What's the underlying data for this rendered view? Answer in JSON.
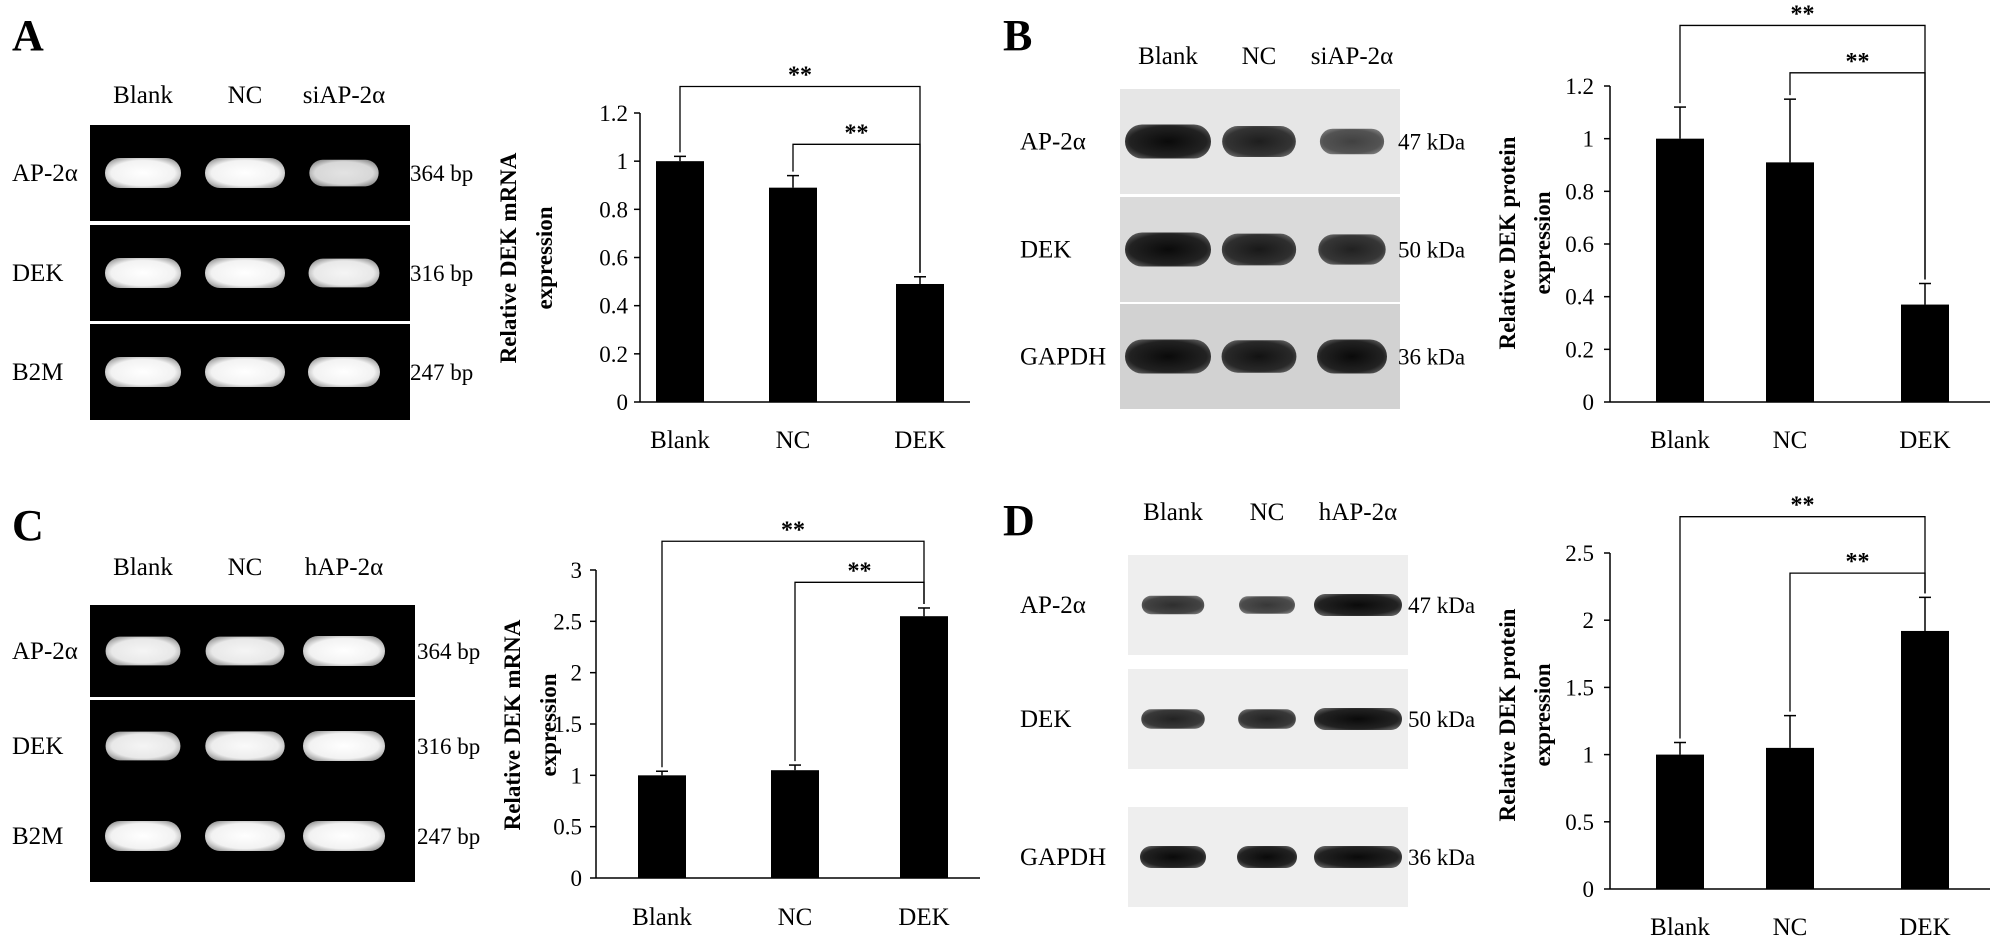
{
  "panels": [
    {
      "letter": "A",
      "gel": {
        "style": "dark",
        "lanes": [
          "Blank",
          "NC",
          "siAP-2α"
        ],
        "rows": [
          {
            "label": "AP-2α",
            "size": "364 bp",
            "intensity": [
              1.0,
              1.0,
              0.75
            ]
          },
          {
            "label": "DEK",
            "size": "316 bp",
            "intensity": [
              1.0,
              1.0,
              0.9
            ]
          },
          {
            "label": "B2M",
            "size": "247 bp",
            "intensity": [
              1.0,
              1.0,
              1.0
            ]
          }
        ]
      },
      "chart_data": {
        "type": "bar",
        "categories": [
          "Blank",
          "NC",
          "DEK"
        ],
        "values": [
          1.0,
          0.89,
          0.49
        ],
        "errors": [
          0.02,
          0.05,
          0.03
        ],
        "ylabel_line1": "Relative DEK mRNA",
        "ylabel_line2": "expression",
        "ylim": [
          0,
          1.2
        ],
        "yticks": [
          0,
          0.2,
          0.4,
          0.6,
          0.8,
          1,
          1.2
        ],
        "significance": [
          {
            "from": 0,
            "to": 2,
            "label": "**",
            "level": 1.31
          },
          {
            "from": 1,
            "to": 2,
            "label": "**",
            "level": 1.07
          }
        ]
      }
    },
    {
      "letter": "B",
      "gel": {
        "style": "light",
        "lanes": [
          "Blank",
          "NC",
          "siAP-2α"
        ],
        "rows": [
          {
            "label": "AP-2α",
            "size": "47 kDa",
            "intensity": [
              1.0,
              0.8,
              0.45
            ]
          },
          {
            "label": "DEK",
            "size": "50 kDa",
            "intensity": [
              1.0,
              0.85,
              0.75
            ]
          },
          {
            "label": "GAPDH",
            "size": "36 kDa",
            "intensity": [
              1.0,
              0.9,
              1.0
            ]
          }
        ]
      },
      "chart_data": {
        "type": "bar",
        "categories": [
          "Blank",
          "NC",
          "DEK"
        ],
        "values": [
          1.0,
          0.91,
          0.37
        ],
        "errors": [
          0.12,
          0.24,
          0.08
        ],
        "ylabel_line1": "Relative DEK protein",
        "ylabel_line2": "expression",
        "ylim": [
          0,
          1.2
        ],
        "yticks": [
          0,
          0.2,
          0.4,
          0.6,
          0.8,
          1,
          1.2
        ],
        "significance": [
          {
            "from": 0,
            "to": 2,
            "label": "**",
            "level": 1.43
          },
          {
            "from": 1,
            "to": 2,
            "label": "**",
            "level": 1.25
          }
        ]
      }
    },
    {
      "letter": "C",
      "gel": {
        "style": "dark",
        "lanes": [
          "Blank",
          "NC",
          "hAP-2α"
        ],
        "rows": [
          {
            "label": "AP-2α",
            "size": "364 bp",
            "intensity": [
              0.9,
              0.9,
              1.0
            ]
          },
          {
            "label": "DEK",
            "size": "316 bp",
            "intensity": [
              0.9,
              0.95,
              1.0
            ]
          },
          {
            "label": "B2M",
            "size": "247 bp",
            "intensity": [
              1.0,
              1.0,
              1.0
            ]
          }
        ]
      },
      "chart_data": {
        "type": "bar",
        "categories": [
          "Blank",
          "NC",
          "DEK"
        ],
        "values": [
          1.0,
          1.05,
          2.55
        ],
        "errors": [
          0.04,
          0.05,
          0.08
        ],
        "ylabel_line1": "Relative DEK mRNA",
        "ylabel_line2": "expression",
        "ylim": [
          0,
          3
        ],
        "yticks": [
          0,
          0.5,
          1,
          1.5,
          2,
          2.5,
          3
        ],
        "significance": [
          {
            "from": 0,
            "to": 2,
            "label": "**",
            "level": 3.28
          },
          {
            "from": 1,
            "to": 2,
            "label": "**",
            "level": 2.88
          }
        ]
      }
    },
    {
      "letter": "D",
      "gel": {
        "style": "light",
        "lanes": [
          "Blank",
          "NC",
          "hAP-2α"
        ],
        "rows": [
          {
            "label": "AP-2α",
            "size": "47 kDa",
            "intensity": [
              0.65,
              0.55,
              1.0
            ]
          },
          {
            "label": "DEK",
            "size": "50 kDa",
            "intensity": [
              0.75,
              0.75,
              1.0
            ]
          },
          {
            "label": "GAPDH",
            "size": "36 kDa",
            "intensity": [
              1.0,
              1.0,
              1.0
            ]
          }
        ]
      },
      "chart_data": {
        "type": "bar",
        "categories": [
          "Blank",
          "NC",
          "DEK"
        ],
        "values": [
          1.0,
          1.05,
          1.92
        ],
        "errors": [
          0.09,
          0.24,
          0.25
        ],
        "ylabel_line1": "Relative DEK protein",
        "ylabel_line2": "expression",
        "ylim": [
          0,
          2.5
        ],
        "yticks": [
          0,
          0.5,
          1,
          1.5,
          2,
          2.5
        ],
        "significance": [
          {
            "from": 0,
            "to": 2,
            "label": "**",
            "level": 2.77
          },
          {
            "from": 1,
            "to": 2,
            "label": "**",
            "level": 2.35
          }
        ]
      }
    }
  ]
}
